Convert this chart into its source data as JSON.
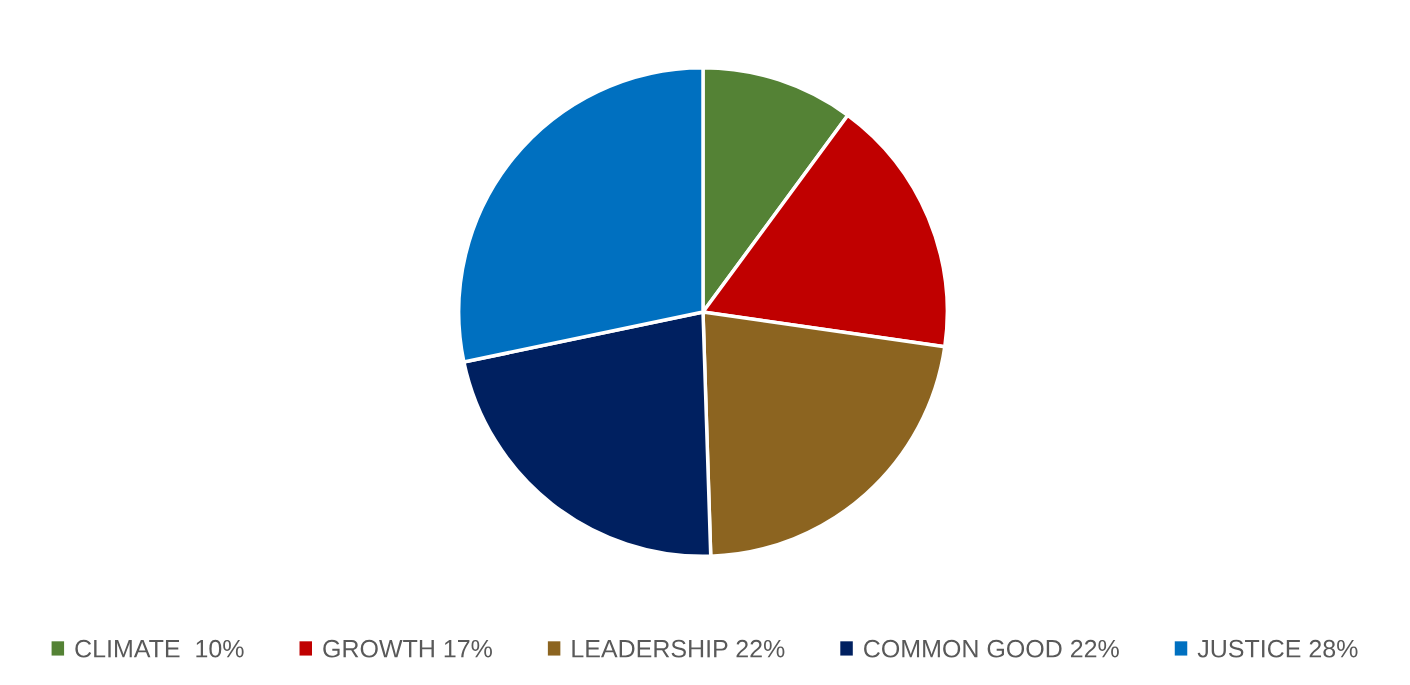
{
  "chart_data": {
    "type": "pie",
    "categories": [
      "CLIMATE  10%",
      "GROWTH 17%",
      "LEADERSHIP 22%",
      "COMMON GOOD 22%",
      "JUSTICE 28%"
    ],
    "values": [
      10,
      17,
      22,
      22,
      28
    ],
    "colors": [
      "#548235",
      "#c00000",
      "#8c6420",
      "#002060",
      "#0070c0"
    ],
    "legend": "bottom"
  }
}
